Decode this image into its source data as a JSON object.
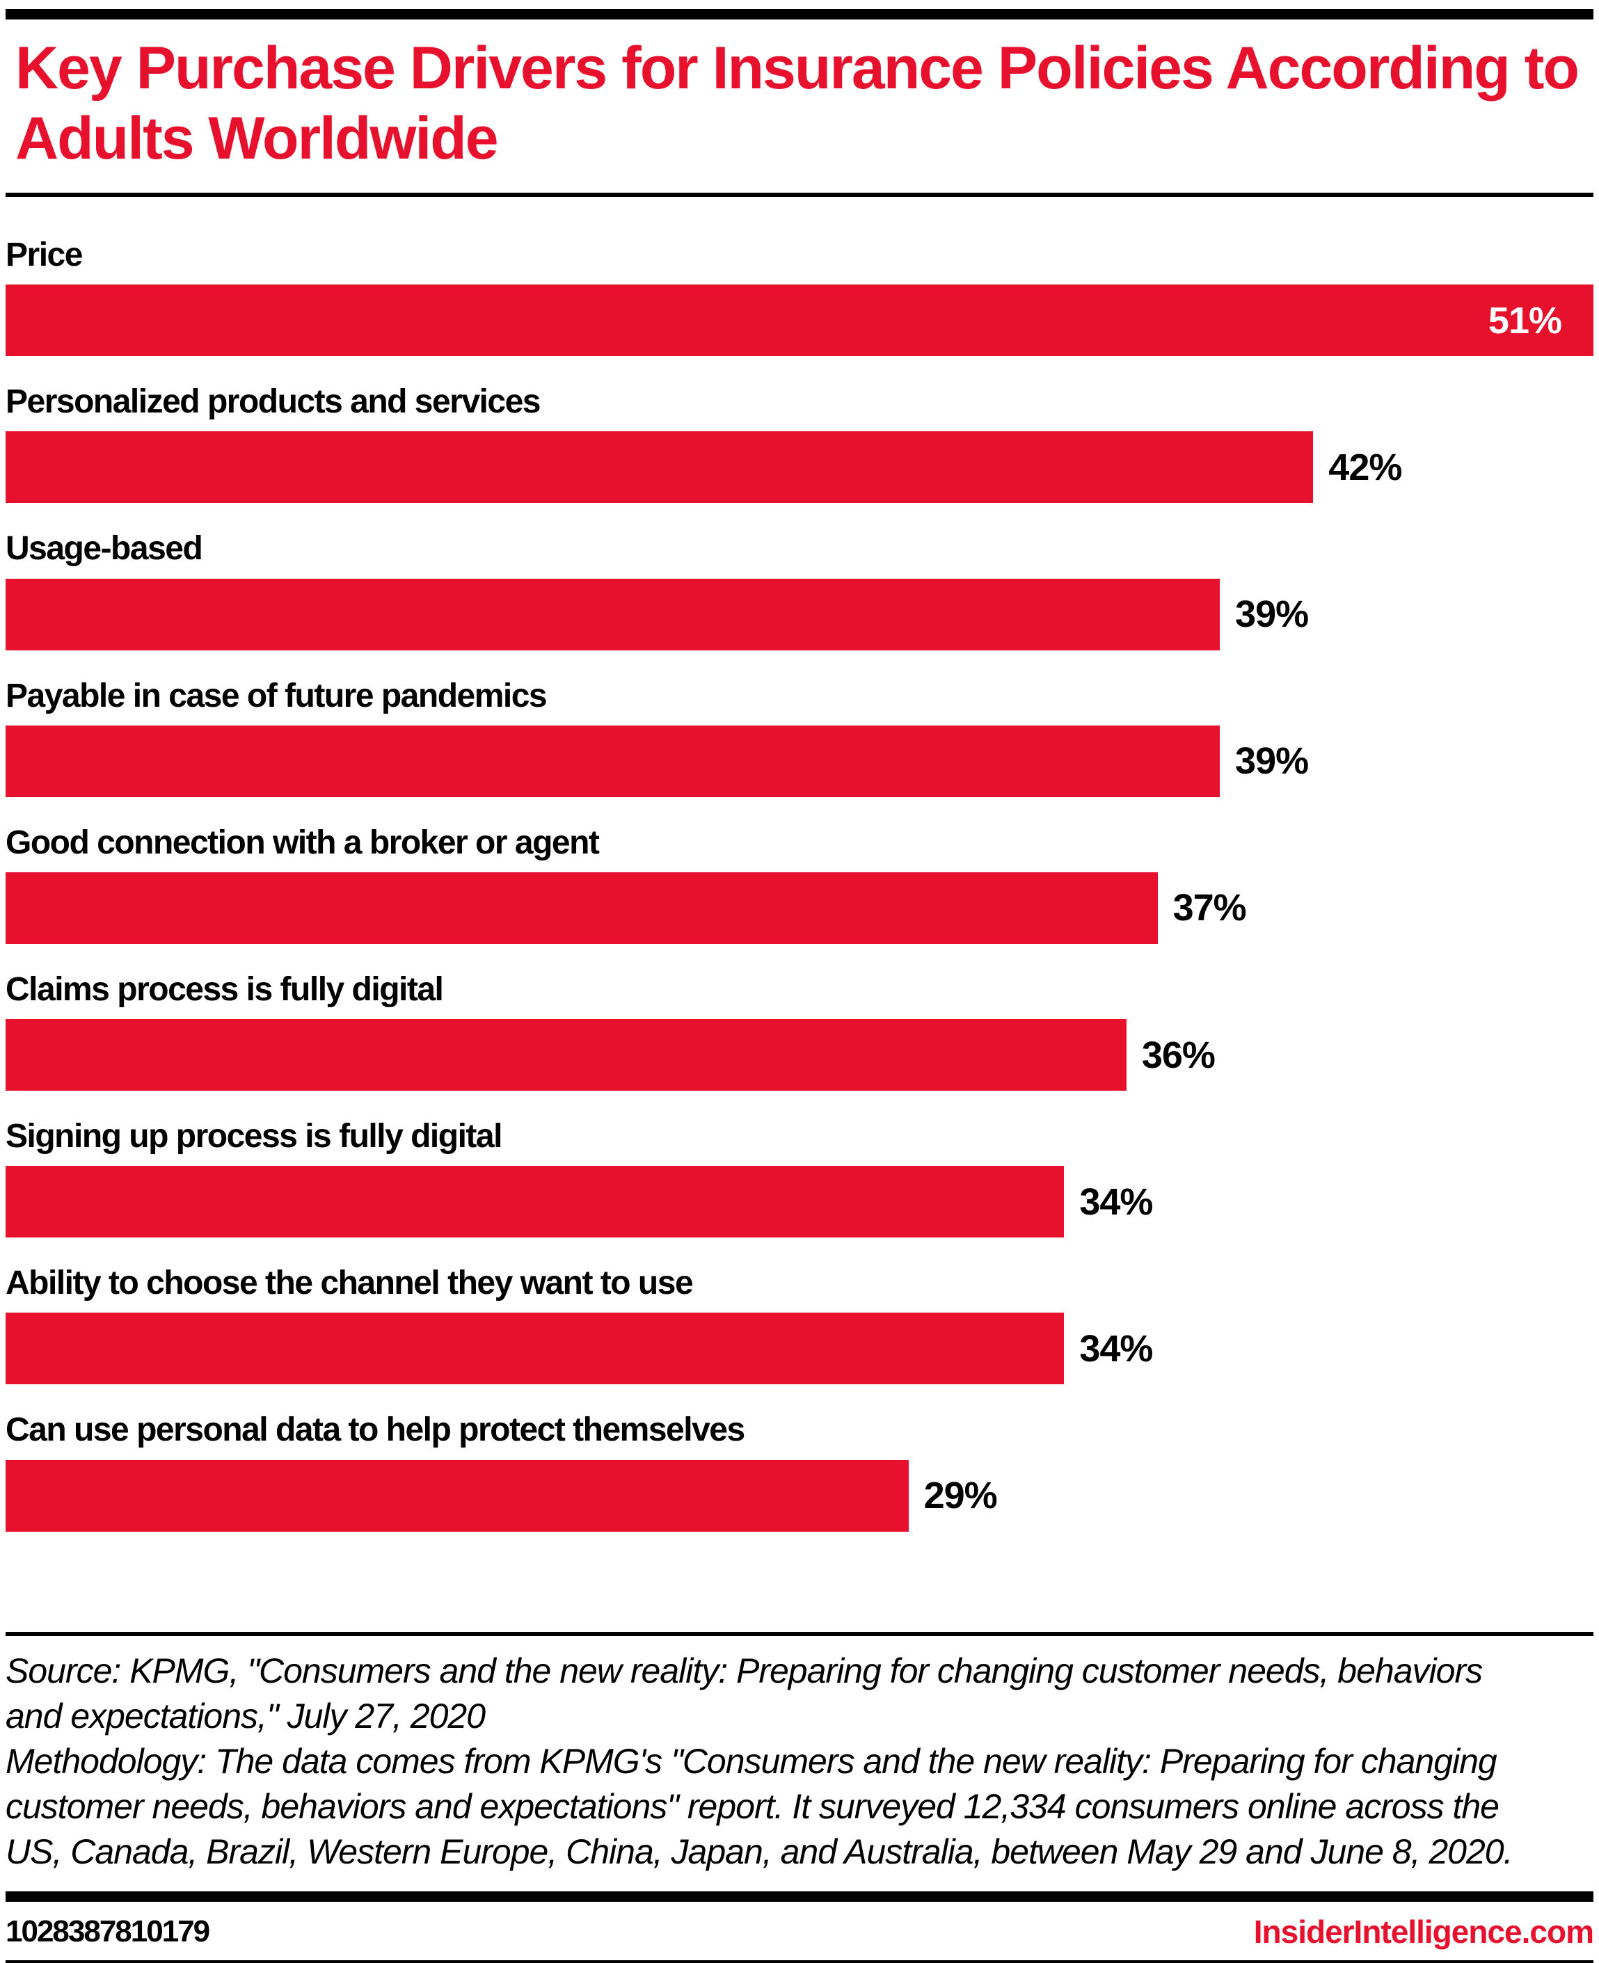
{
  "header": {
    "title": "Key Purchase Drivers for Insurance Policies According to Adults Worldwide"
  },
  "chart_data": {
    "type": "bar",
    "orientation": "horizontal",
    "title": "Key Purchase Drivers for Insurance Policies According to Adults Worldwide",
    "xlabel": "",
    "ylabel": "",
    "xlim": [
      0,
      51
    ],
    "value_suffix": "%",
    "grid": false,
    "legend": false,
    "categories": [
      "Price",
      "Personalized products and services",
      "Usage-based",
      "Payable in case of future pandemics",
      "Good connection with a broker or agent",
      "Claims process is fully digital",
      "Signing up process is fully digital",
      "Ability to choose the channel they want to use",
      "Can use personal data to help protect themselves"
    ],
    "values": [
      51,
      42,
      39,
      39,
      37,
      36,
      34,
      34,
      29
    ],
    "bars": [
      {
        "label": "Price",
        "value": 51,
        "value_inside": true
      },
      {
        "label": "Personalized products and services",
        "value": 42,
        "value_inside": false
      },
      {
        "label": "Usage-based",
        "value": 39,
        "value_inside": false
      },
      {
        "label": "Payable in case of future pandemics",
        "value": 39,
        "value_inside": false
      },
      {
        "label": "Good connection with a broker or agent",
        "value": 37,
        "value_inside": false
      },
      {
        "label": "Claims process is fully digital",
        "value": 36,
        "value_inside": false
      },
      {
        "label": "Signing up process is fully digital",
        "value": 34,
        "value_inside": false
      },
      {
        "label": "Ability to choose the channel they want to use",
        "value": 34,
        "value_inside": false
      },
      {
        "label": "Can use personal data to help protect themselves",
        "value": 29,
        "value_inside": false
      }
    ]
  },
  "footer": {
    "source": "Source: KPMG, \"Consumers and the new reality: Preparing for changing customer needs, behaviors and expectations,\" July 27, 2020",
    "methodology": "Methodology: The data comes from KPMG's \"Consumers and the new reality: Preparing for changing customer needs, behaviors and expectations\" report. It surveyed 12,334 consumers online across the US, Canada, Brazil, Western Europe, China, Japan, and Australia, between May 29 and June 8, 2020.",
    "chart_id": "1028387810179",
    "brand": "InsiderIntelligence.com"
  },
  "colors": {
    "accent": "#e8112d",
    "bar": "#e8112d",
    "text": "#000000",
    "background": "#ffffff"
  }
}
